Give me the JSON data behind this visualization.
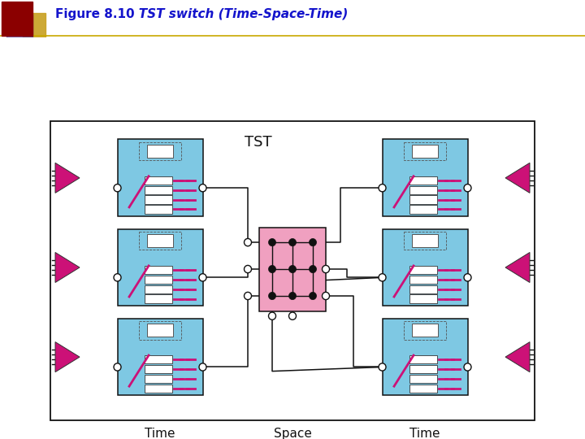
{
  "title_bold": "Figure 8.10",
  "title_italic": "   TST switch (Time-Space-Time)",
  "title_color": "#1414CC",
  "header_bg": "#F0EDD0",
  "header_line_color": "#C8A800",
  "sq1_color": "#8B0000",
  "sq2_color": "#3333AA",
  "sq3_color": "#C8A020",
  "light_blue": "#7EC8E3",
  "pink_space": "#F0A0C0",
  "dark_pink": "#CC1177",
  "black": "#111111",
  "white": "#FFFFFF",
  "time_label": "Time",
  "space_label": "Space",
  "tst_label": "TST",
  "figure_bg": "#ffffff"
}
